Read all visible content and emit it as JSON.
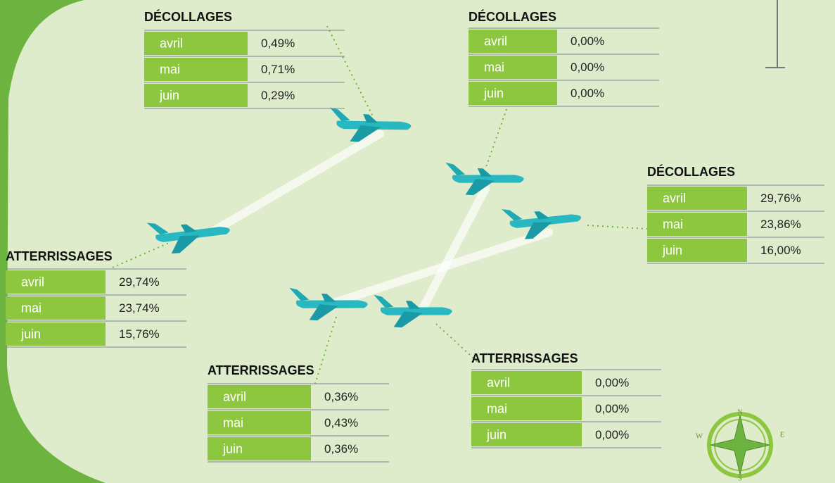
{
  "tables": [
    {
      "title": "DÉCOLLAGES",
      "rows": [
        [
          "avril",
          "0,49%"
        ],
        [
          "mai",
          "0,71%"
        ],
        [
          "juin",
          "0,29%"
        ]
      ]
    },
    {
      "title": "DÉCOLLAGES",
      "rows": [
        [
          "avril",
          "0,00%"
        ],
        [
          "mai",
          "0,00%"
        ],
        [
          "juin",
          "0,00%"
        ]
      ]
    },
    {
      "title": "DÉCOLLAGES",
      "rows": [
        [
          "avril",
          "29,76%"
        ],
        [
          "mai",
          "23,86%"
        ],
        [
          "juin",
          "16,00%"
        ]
      ]
    },
    {
      "title": "ATTERRISSAGES",
      "rows": [
        [
          "avril",
          "29,74%"
        ],
        [
          "mai",
          "23,74%"
        ],
        [
          "juin",
          "15,76%"
        ]
      ]
    },
    {
      "title": "ATTERRISSAGES",
      "rows": [
        [
          "avril",
          "0,36%"
        ],
        [
          "mai",
          "0,43%"
        ],
        [
          "juin",
          "0,36%"
        ]
      ]
    },
    {
      "title": "ATTERRISSAGES",
      "rows": [
        [
          "avril",
          "0,00%"
        ],
        [
          "mai",
          "0,00%"
        ],
        [
          "juin",
          "0,00%"
        ]
      ]
    }
  ],
  "compass": {
    "north": "N",
    "east": "E",
    "south": "S",
    "west": "W"
  }
}
